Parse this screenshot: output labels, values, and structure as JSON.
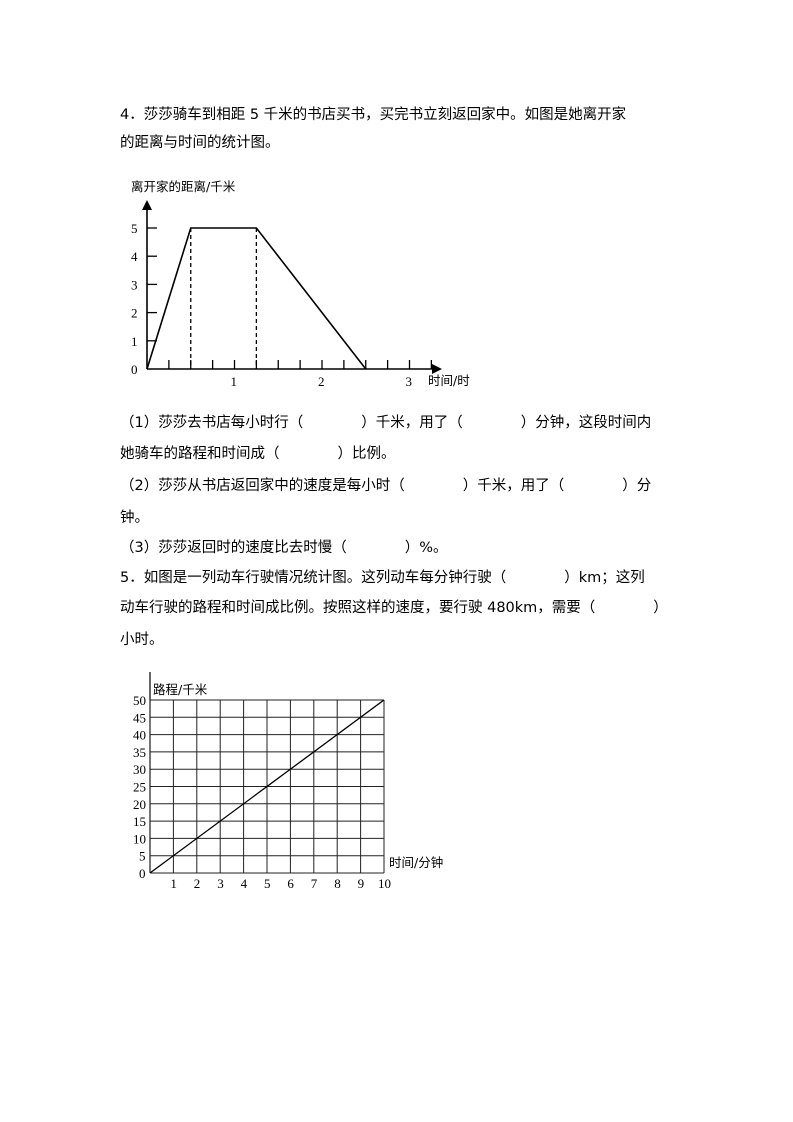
{
  "problem4": {
    "lines": [
      "4．莎莎骑车到相距 5 千米的书店买书，买完书立刻返回家中。如图是她离开家",
      "的距离与时间的统计图。"
    ],
    "questions": [
      "（1）莎莎去书店每小时行（　　　　）千米，用了（　　　　）分钟，这段时间内",
      "她骑车的路程和时间成（　　　　）比例。",
      "（2）莎莎从书店返回家中的速度是每小时（　　　　）千米，用了（　　　　）分",
      "钟。",
      "（3）莎莎返回时的速度比去时慢（　　　　）%。"
    ]
  },
  "problem5": {
    "lines": [
      "5．如图是一列动车行驶情况统计图。这列动车每分钟行驶（　　　　）km；这列",
      "动车行驶的路程和时间成比例。按照这样的速度，要行驶 480km，需要（　　　　）",
      "小时。"
    ]
  },
  "chart_data": [
    {
      "type": "line",
      "ylabel": "离开家的距离/千米",
      "xlabel": "时间/时",
      "x_ticks": [
        "1",
        "2",
        "3"
      ],
      "y_ticks": [
        "0",
        "1",
        "2",
        "3",
        "4",
        "5"
      ],
      "xlim": [
        0,
        3.25
      ],
      "ylim": [
        0,
        5.5
      ],
      "minor_tick_step": 0.25,
      "series": [
        {
          "x": [
            0,
            0.5,
            1.25,
            2.5
          ],
          "y": [
            0,
            5,
            5,
            0
          ]
        }
      ],
      "dashed_guides_x": [
        0.5,
        1.25
      ],
      "grid": false
    },
    {
      "type": "line",
      "ylabel": "路程/千米",
      "xlabel": "时间/分钟",
      "x_ticks": [
        "1",
        "2",
        "3",
        "4",
        "5",
        "6",
        "7",
        "8",
        "9",
        "10"
      ],
      "y_ticks": [
        "0",
        "5",
        "10",
        "15",
        "20",
        "25",
        "30",
        "35",
        "40",
        "45",
        "50"
      ],
      "xlim": [
        0,
        10
      ],
      "ylim": [
        0,
        50
      ],
      "series": [
        {
          "x": [
            0,
            10
          ],
          "y": [
            0,
            50
          ]
        }
      ],
      "grid": true
    }
  ]
}
